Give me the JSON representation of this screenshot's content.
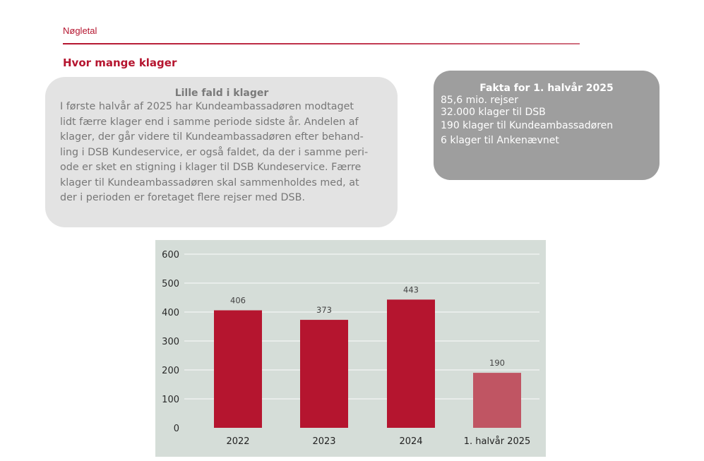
{
  "section_label": "Nøgletal",
  "heading": "Hvor mange klager",
  "left_box": {
    "title": "Lille fald i klager",
    "lines": [
      "I første halvår af 2025 har Kundeambassadøren modtaget",
      "lidt færre klager end i samme periode sidste år. Andelen af",
      "klager, der går videre til Kundeambassadøren efter behand-",
      "ling i DSB Kundeservice, er også faldet, da der i samme peri-",
      "ode er sket en stigning i klager til DSB Kundeservice. Færre",
      "klager til Kundeambassadøren skal sammenholdes med, at",
      "der i perioden er foretaget flere rejser med DSB."
    ]
  },
  "right_box": {
    "title": "Fakta for 1. halvår 2025",
    "lines": [
      "85,6 mio. rejser",
      "32.000 klager til DSB",
      "190 klager til Kundeambassadøren",
      "6 klager til Ankenævnet"
    ]
  },
  "colors": {
    "brand_red": "#b5152f",
    "highlight_bar": "#c05563",
    "chart_bg": "#d5ddd8",
    "gridline": "#eef1ef"
  },
  "chart_data": {
    "type": "bar",
    "title": "",
    "xlabel": "",
    "ylabel": "",
    "categories": [
      "2022",
      "2023",
      "2024",
      "1. halvår 2025"
    ],
    "values": [
      406,
      373,
      443,
      190
    ],
    "data_labels": [
      "406",
      "373",
      "443",
      "190"
    ],
    "bar_colors": [
      "#b5152f",
      "#b5152f",
      "#b5152f",
      "#c05563"
    ],
    "ylim": [
      0,
      600
    ],
    "yticks": [
      0,
      100,
      200,
      300,
      400,
      500,
      600
    ],
    "ytick_labels": [
      "0",
      "100",
      "200",
      "300",
      "400",
      "500",
      "600"
    ],
    "grid": true,
    "legend": "none"
  }
}
